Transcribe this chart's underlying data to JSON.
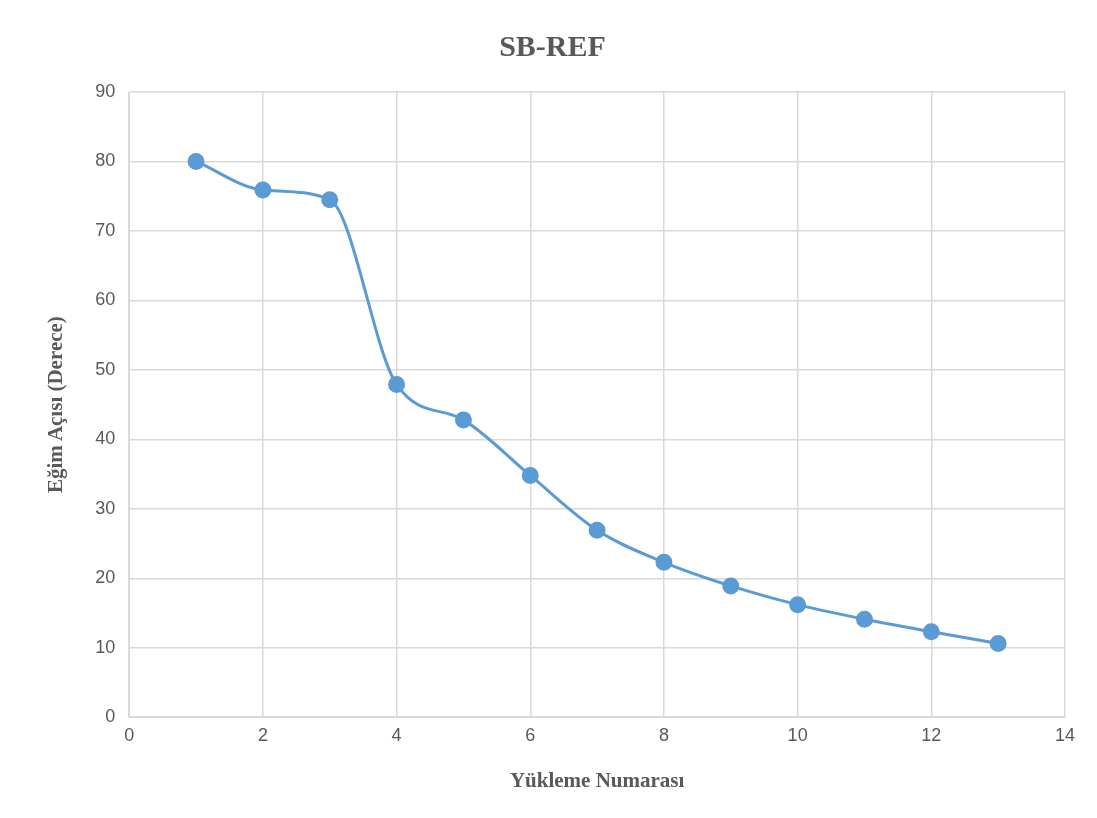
{
  "chart_data": {
    "type": "line",
    "title": "SB-REF",
    "xlabel": "Yükleme Numarası",
    "ylabel": "Eğim Açısı (Derece)",
    "x": [
      1,
      2,
      3,
      4,
      5,
      6,
      7,
      8,
      9,
      10,
      11,
      12,
      13
    ],
    "series": [
      {
        "color": "#5b9bd5",
        "values": [
          80.0,
          75.9,
          74.5,
          47.9,
          42.8,
          34.8,
          26.9,
          22.3,
          18.9,
          16.2,
          14.1,
          12.3,
          10.6
        ]
      }
    ],
    "xlim": [
      0,
      14
    ],
    "xticks": [
      0,
      2,
      4,
      6,
      8,
      10,
      12,
      14
    ],
    "ylim": [
      0,
      90
    ],
    "yticks": [
      0,
      10,
      20,
      30,
      40,
      50,
      60,
      70,
      80,
      90
    ],
    "grid": true,
    "legend": false,
    "marker": "circle",
    "line_style": "solid"
  }
}
